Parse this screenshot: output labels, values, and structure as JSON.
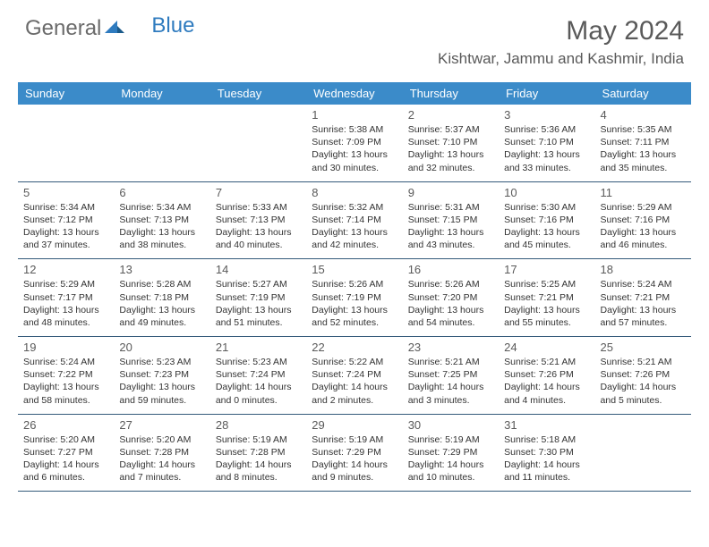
{
  "logo": {
    "text1": "General",
    "text2": "Blue"
  },
  "title": "May 2024",
  "location": "Kishtwar, Jammu and Kashmir, India",
  "headers": [
    "Sunday",
    "Monday",
    "Tuesday",
    "Wednesday",
    "Thursday",
    "Friday",
    "Saturday"
  ],
  "colors": {
    "header_bg": "#3b8bc9",
    "header_text": "#ffffff",
    "border": "#345a7a",
    "logo_gray": "#6b6b6b",
    "logo_blue": "#2f7bbf",
    "title_color": "#5a5a5a"
  },
  "weeks": [
    [
      null,
      null,
      null,
      {
        "d": "1",
        "sr": "5:38 AM",
        "ss": "7:09 PM",
        "dl": "13 hours and 30 minutes."
      },
      {
        "d": "2",
        "sr": "5:37 AM",
        "ss": "7:10 PM",
        "dl": "13 hours and 32 minutes."
      },
      {
        "d": "3",
        "sr": "5:36 AM",
        "ss": "7:10 PM",
        "dl": "13 hours and 33 minutes."
      },
      {
        "d": "4",
        "sr": "5:35 AM",
        "ss": "7:11 PM",
        "dl": "13 hours and 35 minutes."
      }
    ],
    [
      {
        "d": "5",
        "sr": "5:34 AM",
        "ss": "7:12 PM",
        "dl": "13 hours and 37 minutes."
      },
      {
        "d": "6",
        "sr": "5:34 AM",
        "ss": "7:13 PM",
        "dl": "13 hours and 38 minutes."
      },
      {
        "d": "7",
        "sr": "5:33 AM",
        "ss": "7:13 PM",
        "dl": "13 hours and 40 minutes."
      },
      {
        "d": "8",
        "sr": "5:32 AM",
        "ss": "7:14 PM",
        "dl": "13 hours and 42 minutes."
      },
      {
        "d": "9",
        "sr": "5:31 AM",
        "ss": "7:15 PM",
        "dl": "13 hours and 43 minutes."
      },
      {
        "d": "10",
        "sr": "5:30 AM",
        "ss": "7:16 PM",
        "dl": "13 hours and 45 minutes."
      },
      {
        "d": "11",
        "sr": "5:29 AM",
        "ss": "7:16 PM",
        "dl": "13 hours and 46 minutes."
      }
    ],
    [
      {
        "d": "12",
        "sr": "5:29 AM",
        "ss": "7:17 PM",
        "dl": "13 hours and 48 minutes."
      },
      {
        "d": "13",
        "sr": "5:28 AM",
        "ss": "7:18 PM",
        "dl": "13 hours and 49 minutes."
      },
      {
        "d": "14",
        "sr": "5:27 AM",
        "ss": "7:19 PM",
        "dl": "13 hours and 51 minutes."
      },
      {
        "d": "15",
        "sr": "5:26 AM",
        "ss": "7:19 PM",
        "dl": "13 hours and 52 minutes."
      },
      {
        "d": "16",
        "sr": "5:26 AM",
        "ss": "7:20 PM",
        "dl": "13 hours and 54 minutes."
      },
      {
        "d": "17",
        "sr": "5:25 AM",
        "ss": "7:21 PM",
        "dl": "13 hours and 55 minutes."
      },
      {
        "d": "18",
        "sr": "5:24 AM",
        "ss": "7:21 PM",
        "dl": "13 hours and 57 minutes."
      }
    ],
    [
      {
        "d": "19",
        "sr": "5:24 AM",
        "ss": "7:22 PM",
        "dl": "13 hours and 58 minutes."
      },
      {
        "d": "20",
        "sr": "5:23 AM",
        "ss": "7:23 PM",
        "dl": "13 hours and 59 minutes."
      },
      {
        "d": "21",
        "sr": "5:23 AM",
        "ss": "7:24 PM",
        "dl": "14 hours and 0 minutes."
      },
      {
        "d": "22",
        "sr": "5:22 AM",
        "ss": "7:24 PM",
        "dl": "14 hours and 2 minutes."
      },
      {
        "d": "23",
        "sr": "5:21 AM",
        "ss": "7:25 PM",
        "dl": "14 hours and 3 minutes."
      },
      {
        "d": "24",
        "sr": "5:21 AM",
        "ss": "7:26 PM",
        "dl": "14 hours and 4 minutes."
      },
      {
        "d": "25",
        "sr": "5:21 AM",
        "ss": "7:26 PM",
        "dl": "14 hours and 5 minutes."
      }
    ],
    [
      {
        "d": "26",
        "sr": "5:20 AM",
        "ss": "7:27 PM",
        "dl": "14 hours and 6 minutes."
      },
      {
        "d": "27",
        "sr": "5:20 AM",
        "ss": "7:28 PM",
        "dl": "14 hours and 7 minutes."
      },
      {
        "d": "28",
        "sr": "5:19 AM",
        "ss": "7:28 PM",
        "dl": "14 hours and 8 minutes."
      },
      {
        "d": "29",
        "sr": "5:19 AM",
        "ss": "7:29 PM",
        "dl": "14 hours and 9 minutes."
      },
      {
        "d": "30",
        "sr": "5:19 AM",
        "ss": "7:29 PM",
        "dl": "14 hours and 10 minutes."
      },
      {
        "d": "31",
        "sr": "5:18 AM",
        "ss": "7:30 PM",
        "dl": "14 hours and 11 minutes."
      },
      null
    ]
  ],
  "labels": {
    "sunrise": "Sunrise: ",
    "sunset": "Sunset: ",
    "daylight": "Daylight: "
  }
}
